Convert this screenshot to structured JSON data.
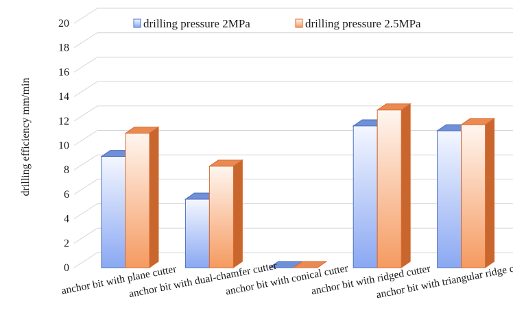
{
  "chart_data": {
    "type": "bar",
    "title": "",
    "xlabel": "",
    "ylabel": "drilling efficiency mm/min",
    "ylim": [
      0,
      20
    ],
    "yticks": [
      0,
      2,
      4,
      6,
      8,
      10,
      12,
      14,
      16,
      18,
      20
    ],
    "grid": true,
    "legend_position": "top",
    "categories": [
      "anchor bit with plane cutter",
      "anchor bit with dual-chamfer cutter",
      "anchor bit with conical cutter",
      "anchor bit with ridged cutter",
      "anchor bit with triangular ridge cutter"
    ],
    "series": [
      {
        "name": "drilling pressure 2MPa",
        "values": [
          9.1,
          5.6,
          0,
          11.6,
          11.2
        ],
        "color": "#8aaaf0",
        "edge": "#4a6fc0"
      },
      {
        "name": "drilling pressure 2.5MPa",
        "values": [
          11.0,
          8.3,
          0,
          12.9,
          11.7
        ],
        "color": "#f7a877",
        "edge": "#d8692e"
      }
    ]
  }
}
